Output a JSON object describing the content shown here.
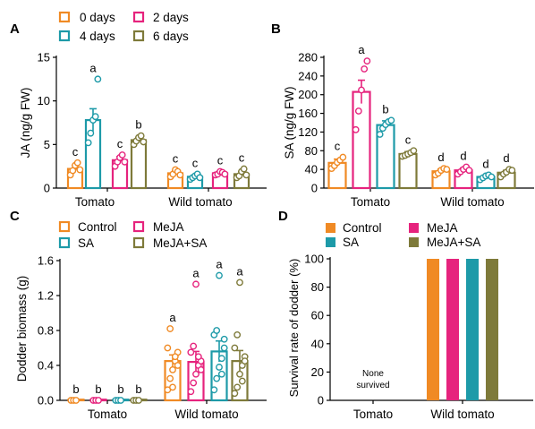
{
  "colors": {
    "control": "#F08A24",
    "pink": "#E6237D",
    "teal": "#1D9AA8",
    "olive": "#7E7A3A"
  },
  "chart_data": [
    {
      "panel": "A",
      "type": "bar",
      "ylabel": "JA (ng/g FW)",
      "ylim": [
        0,
        15
      ],
      "yticks": [
        "0",
        "5",
        "10",
        "15"
      ],
      "categories": [
        "Tomato",
        "Wild tomato"
      ],
      "legend": [
        "0 days",
        "2 days",
        "4 days",
        "6 days"
      ],
      "series": [
        {
          "name": "0 days",
          "color_key": "control",
          "values": [
            2.2,
            1.7
          ],
          "err": [
            0.4,
            0.3
          ],
          "letters": [
            "c",
            "c"
          ],
          "points": [
            [
              1.5,
              2.0,
              2.6,
              2.9,
              2.1
            ],
            [
              1.3,
              1.6,
              2.1,
              1.9,
              1.5
            ]
          ]
        },
        {
          "name": "4 days",
          "color_key": "teal",
          "values": [
            7.8,
            1.3
          ],
          "err": [
            1.3,
            0.2
          ],
          "letters": [
            "a",
            "c"
          ],
          "points": [
            [
              5.2,
              6.3,
              7.8,
              8.2,
              12.5
            ],
            [
              1.0,
              1.2,
              1.4,
              1.6,
              1.2
            ]
          ]
        },
        {
          "name": "2 days",
          "color_key": "pink",
          "values": [
            3.2,
            1.7
          ],
          "err": [
            0.4,
            0.2
          ],
          "letters": [
            "c",
            "c"
          ],
          "points": [
            [
              2.5,
              3.0,
              3.5,
              3.8,
              3.0
            ],
            [
              1.5,
              1.6,
              1.9,
              1.8,
              1.6
            ]
          ]
        },
        {
          "name": "6 days",
          "color_key": "olive",
          "values": [
            5.5,
            1.6
          ],
          "err": [
            0.3,
            0.3
          ],
          "letters": [
            "b",
            "c"
          ],
          "points": [
            [
              5.0,
              5.4,
              5.8,
              6.0,
              5.3
            ],
            [
              1.2,
              1.4,
              1.9,
              2.2,
              1.5
            ]
          ]
        }
      ]
    },
    {
      "panel": "B",
      "type": "bar",
      "ylabel": "SA (ng/g FW)",
      "ylim": [
        0,
        280
      ],
      "yticks": [
        "0",
        "40",
        "80",
        "120",
        "160",
        "200",
        "240",
        "280"
      ],
      "categories": [
        "Tomato",
        "Wild tomato"
      ],
      "series": [
        {
          "name": "0 days",
          "color_key": "control",
          "values": [
            54,
            36
          ],
          "err": [
            8,
            5
          ],
          "letters": [
            "c",
            "d"
          ],
          "points": [
            [
              42,
              48,
              55,
              60,
              66
            ],
            [
              28,
              32,
              38,
              42,
              40
            ]
          ]
        },
        {
          "name": "2 days",
          "color_key": "pink",
          "values": [
            206,
            38
          ],
          "err": [
            25,
            5
          ],
          "letters": [
            "a",
            "d"
          ],
          "points": [
            [
              125,
              165,
              210,
              255,
              272
            ],
            [
              30,
              35,
              40,
              45,
              38
            ]
          ]
        },
        {
          "name": "4 days",
          "color_key": "teal",
          "values": [
            135,
            24
          ],
          "err": [
            9,
            3
          ],
          "letters": [
            "b",
            "d"
          ],
          "points": [
            [
              115,
              128,
              136,
              142,
              145
            ],
            [
              18,
              22,
              26,
              28,
              24
            ]
          ]
        },
        {
          "name": "6 days",
          "color_key": "olive",
          "values": [
            73,
            33
          ],
          "err": [
            5,
            5
          ],
          "letters": [
            "c",
            "d"
          ],
          "points": [
            [
              68,
              70,
              73,
              76,
              80
            ],
            [
              24,
              30,
              34,
              40,
              38
            ]
          ]
        }
      ]
    },
    {
      "panel": "C",
      "type": "bar",
      "ylabel": "Dodder biomass (g)",
      "ylim": [
        0,
        1.6
      ],
      "yticks": [
        "0.0",
        "0.4",
        "0.8",
        "1.2",
        "1.6"
      ],
      "categories": [
        "Tomato",
        "Wild tomato"
      ],
      "legend": [
        "Control",
        "MeJA",
        "SA",
        "MeJA+SA"
      ],
      "series": [
        {
          "name": "Control",
          "color_key": "control",
          "values": [
            0,
            0.45
          ],
          "err": [
            0,
            0.07
          ],
          "letters": [
            "b",
            "a"
          ],
          "points": [
            [
              0,
              0,
              0
            ],
            [
              0.12,
              0.25,
              0.35,
              0.45,
              0.55,
              0.6,
              0.82,
              0.15,
              0.5,
              0.4
            ]
          ]
        },
        {
          "name": "MeJA",
          "color_key": "pink",
          "values": [
            0,
            0.44
          ],
          "err": [
            0,
            0.12
          ],
          "letters": [
            "b",
            "a"
          ],
          "points": [
            [
              0,
              0,
              0
            ],
            [
              0.1,
              0.2,
              0.3,
              0.4,
              0.45,
              0.55,
              0.62,
              1.33,
              0.5,
              0.35
            ]
          ]
        },
        {
          "name": "SA",
          "color_key": "teal",
          "values": [
            0,
            0.56
          ],
          "err": [
            0,
            0.12
          ],
          "letters": [
            "b",
            "a"
          ],
          "points": [
            [
              0,
              0,
              0
            ],
            [
              0.12,
              0.25,
              0.38,
              0.48,
              0.6,
              0.75,
              0.8,
              1.43,
              0.3,
              0.7
            ]
          ]
        },
        {
          "name": "MeJA+SA",
          "color_key": "olive",
          "values": [
            0,
            0.45
          ],
          "err": [
            0,
            0.12
          ],
          "letters": [
            "b",
            "a"
          ],
          "points": [
            [
              0,
              0,
              0
            ],
            [
              0.08,
              0.15,
              0.3,
              0.4,
              0.5,
              0.6,
              0.75,
              1.35,
              0.22,
              0.45
            ]
          ]
        }
      ]
    },
    {
      "panel": "D",
      "type": "bar",
      "ylabel": "Survival rate of dodder (%)",
      "ylim": [
        0,
        100
      ],
      "yticks": [
        "0",
        "20",
        "40",
        "60",
        "80",
        "100"
      ],
      "categories": [
        "Tomato",
        "Wild tomato"
      ],
      "legend": [
        "Control",
        "MeJA",
        "SA",
        "MeJA+SA"
      ],
      "annotation": [
        "None",
        "survived"
      ],
      "series": [
        {
          "name": "Control",
          "color_key": "control",
          "values": [
            0,
            100
          ]
        },
        {
          "name": "MeJA",
          "color_key": "pink",
          "values": [
            0,
            100
          ]
        },
        {
          "name": "SA",
          "color_key": "teal",
          "values": [
            0,
            100
          ]
        },
        {
          "name": "MeJA+SA",
          "color_key": "olive",
          "values": [
            0,
            100
          ]
        }
      ]
    }
  ]
}
